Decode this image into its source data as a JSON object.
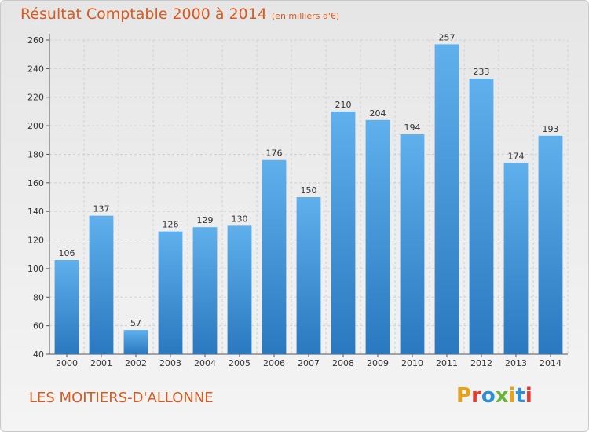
{
  "header": {
    "title": "Résultat Comptable 2000 à 2014",
    "subtitle": "(en milliers d'€)"
  },
  "footer": {
    "commune": "LES MOITIERS-D'ALLONNE",
    "logo_text": "Proxiti"
  },
  "colors": {
    "bar": "#3a8fd8",
    "accent": "#d95a1e",
    "background": "#ebebeb"
  },
  "chart_data": {
    "type": "bar",
    "title": "Résultat Comptable 2000 à 2014 (en milliers d'€)",
    "xlabel": "",
    "ylabel": "",
    "categories": [
      "2000",
      "2001",
      "2002",
      "2003",
      "2004",
      "2005",
      "2006",
      "2007",
      "2008",
      "2009",
      "2010",
      "2011",
      "2012",
      "2013",
      "2014"
    ],
    "values": [
      106,
      137,
      57,
      126,
      129,
      130,
      176,
      150,
      210,
      204,
      194,
      257,
      233,
      174,
      193
    ],
    "ylim": [
      40,
      260
    ],
    "yticks": [
      40,
      60,
      80,
      100,
      120,
      140,
      160,
      180,
      200,
      220,
      240,
      260
    ],
    "grid": true,
    "legend": "none"
  }
}
